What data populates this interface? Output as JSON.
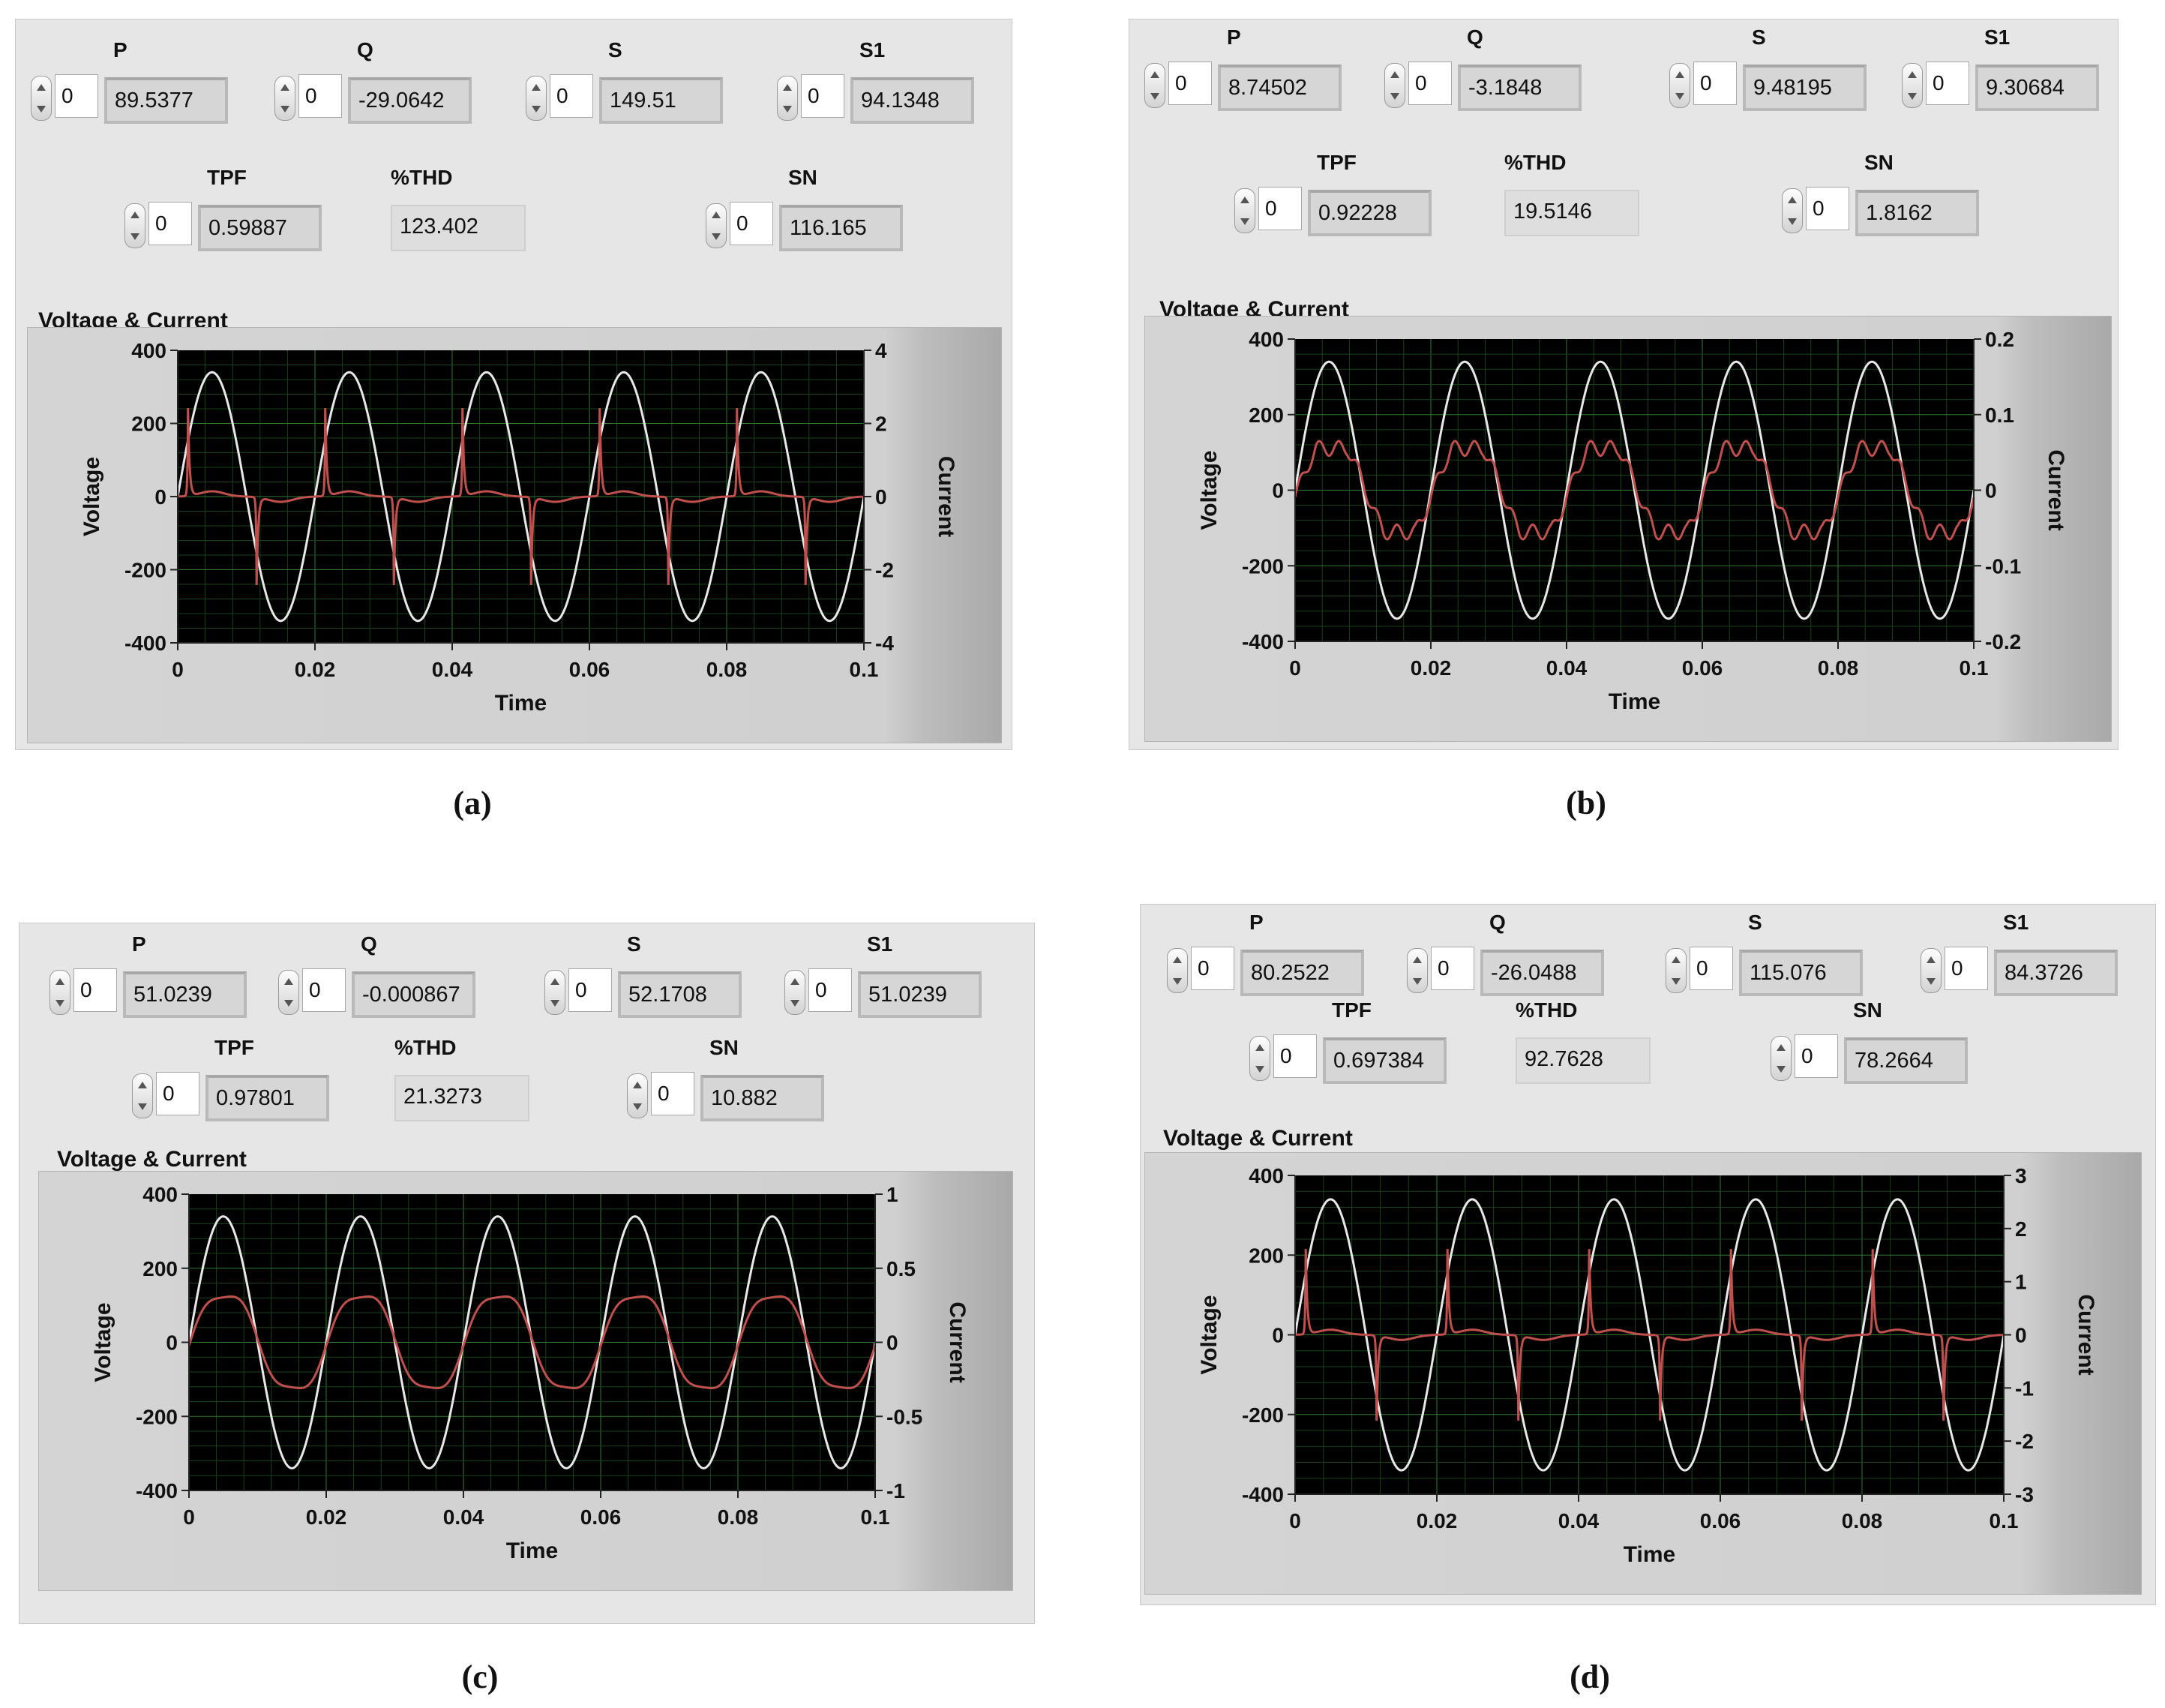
{
  "panels": [
    {
      "caption": "(a)",
      "controls": {
        "P": {
          "label": "P",
          "index": "0",
          "value": "89.5377"
        },
        "Q": {
          "label": "Q",
          "index": "0",
          "value": "-29.0642"
        },
        "S": {
          "label": "S",
          "index": "0",
          "value": "149.51"
        },
        "S1": {
          "label": "S1",
          "index": "0",
          "value": "94.1348"
        },
        "TPF": {
          "label": "TPF",
          "index": "0",
          "value": "0.59887"
        },
        "THD": {
          "label": "%THD",
          "value": "123.402"
        },
        "SN": {
          "label": "SN",
          "index": "0",
          "value": "116.165"
        }
      },
      "graph_title": "Voltage & Current",
      "chart_data": {
        "type": "line",
        "xlabel": "Time",
        "ylabel": "Voltage",
        "y2label": "Current",
        "xlim": [
          0,
          0.1
        ],
        "ylim": [
          -400,
          400
        ],
        "y2lim": [
          -4,
          4
        ],
        "xticks": [
          "0",
          "0.02",
          "0.04",
          "0.06",
          "0.08",
          "0.1"
        ],
        "yticks": [
          "400",
          "200",
          "0",
          "-200",
          "-400"
        ],
        "y2ticks": [
          "4",
          "2",
          "0",
          "-2",
          "-4"
        ],
        "grid": true,
        "voltage": {
          "amplitude": 340,
          "frequency": 50,
          "color": "#e8e8e8"
        },
        "current": {
          "shape": "spiky",
          "peak": 2.4,
          "color": "#c0504d"
        }
      }
    },
    {
      "caption": "(b)",
      "controls": {
        "P": {
          "label": "P",
          "index": "0",
          "value": "8.74502"
        },
        "Q": {
          "label": "Q",
          "index": "0",
          "value": "-3.1848"
        },
        "S": {
          "label": "S",
          "index": "0",
          "value": "9.48195"
        },
        "S1": {
          "label": "S1",
          "index": "0",
          "value": "9.30684"
        },
        "TPF": {
          "label": "TPF",
          "index": "0",
          "value": "0.92228"
        },
        "THD": {
          "label": "%THD",
          "value": "19.5146"
        },
        "SN": {
          "label": "SN",
          "index": "0",
          "value": "1.8162"
        }
      },
      "graph_title": "Voltage & Current",
      "chart_data": {
        "type": "line",
        "xlabel": "Time",
        "ylabel": "Voltage",
        "y2label": "Current",
        "xlim": [
          0,
          0.1
        ],
        "ylim": [
          -400,
          400
        ],
        "y2lim": [
          -0.2,
          0.2
        ],
        "xticks": [
          "0",
          "0.02",
          "0.04",
          "0.06",
          "0.08",
          "0.1"
        ],
        "yticks": [
          "400",
          "200",
          "0",
          "-200",
          "-400"
        ],
        "y2ticks": [
          "0.2",
          "0.1",
          "0",
          "-0.1",
          "-0.2"
        ],
        "grid": true,
        "voltage": {
          "amplitude": 340,
          "frequency": 50,
          "color": "#e8e8e8"
        },
        "current": {
          "shape": "flattop",
          "peak": 0.065,
          "color": "#c0504d"
        }
      }
    },
    {
      "caption": "(c)",
      "controls": {
        "P": {
          "label": "P",
          "index": "0",
          "value": "51.0239"
        },
        "Q": {
          "label": "Q",
          "index": "0",
          "value": "-0.000867"
        },
        "S": {
          "label": "S",
          "index": "0",
          "value": "52.1708"
        },
        "S1": {
          "label": "S1",
          "index": "0",
          "value": "51.0239"
        },
        "TPF": {
          "label": "TPF",
          "index": "0",
          "value": "0.97801"
        },
        "THD": {
          "label": "%THD",
          "value": "21.3273"
        },
        "SN": {
          "label": "SN",
          "index": "0",
          "value": "10.882"
        }
      },
      "graph_title": "Voltage & Current",
      "chart_data": {
        "type": "line",
        "xlabel": "Time",
        "ylabel": "Voltage",
        "y2label": "Current",
        "xlim": [
          0,
          0.1
        ],
        "ylim": [
          -400,
          400
        ],
        "y2lim": [
          -1,
          1
        ],
        "xticks": [
          "0",
          "0.02",
          "0.04",
          "0.06",
          "0.08",
          "0.1"
        ],
        "yticks": [
          "400",
          "200",
          "0",
          "-200",
          "-400"
        ],
        "y2ticks": [
          "1",
          "0.5",
          "0",
          "-0.5",
          "-1"
        ],
        "grid": true,
        "voltage": {
          "amplitude": 340,
          "frequency": 50,
          "color": "#e8e8e8"
        },
        "current": {
          "shape": "smooth",
          "peak": 0.38,
          "color": "#c0504d"
        }
      }
    },
    {
      "caption": "(d)",
      "controls": {
        "P": {
          "label": "P",
          "index": "0",
          "value": "80.2522"
        },
        "Q": {
          "label": "Q",
          "index": "0",
          "value": "-26.0488"
        },
        "S": {
          "label": "S",
          "index": "0",
          "value": "115.076"
        },
        "S1": {
          "label": "S1",
          "index": "0",
          "value": "84.3726"
        },
        "TPF": {
          "label": "TPF",
          "index": "0",
          "value": "0.697384"
        },
        "THD": {
          "label": "%THD",
          "value": "92.7628"
        },
        "SN": {
          "label": "SN",
          "index": "0",
          "value": "78.2664"
        }
      },
      "graph_title": "Voltage & Current",
      "chart_data": {
        "type": "line",
        "xlabel": "Time",
        "ylabel": "Voltage",
        "y2label": "Current",
        "xlim": [
          0,
          0.1
        ],
        "ylim": [
          -400,
          400
        ],
        "y2lim": [
          -3,
          3
        ],
        "xticks": [
          "0",
          "0.02",
          "0.04",
          "0.06",
          "0.08",
          "0.1"
        ],
        "yticks": [
          "400",
          "200",
          "0",
          "-200",
          "-400"
        ],
        "y2ticks": [
          "3",
          "2",
          "1",
          "0",
          "-1",
          "-2",
          "-3"
        ],
        "grid": true,
        "voltage": {
          "amplitude": 340,
          "frequency": 50,
          "color": "#e8e8e8"
        },
        "current": {
          "shape": "spiky",
          "peak": 1.6,
          "color": "#c0504d"
        }
      }
    }
  ]
}
